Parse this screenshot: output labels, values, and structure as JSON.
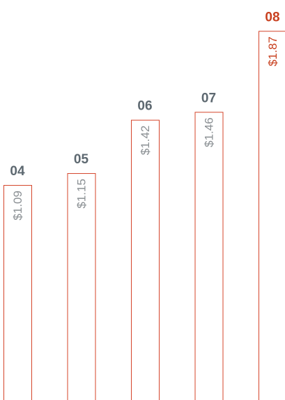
{
  "chart_data": {
    "type": "bar",
    "categories": [
      "04",
      "05",
      "06",
      "07",
      "08"
    ],
    "values": [
      1.09,
      1.15,
      1.42,
      1.46,
      1.87
    ],
    "value_labels": [
      "$1.09",
      "$1.15",
      "$1.42",
      "$1.46",
      "$1.87"
    ],
    "color": "#d4442a",
    "label_colors": [
      "#5d6870",
      "#5d6870",
      "#5d6870",
      "#5d6870",
      "#c8401f"
    ],
    "value_label_colors": [
      "#8a8f93",
      "#8a8f93",
      "#8a8f93",
      "#8a8f93",
      "#c8401f"
    ]
  }
}
